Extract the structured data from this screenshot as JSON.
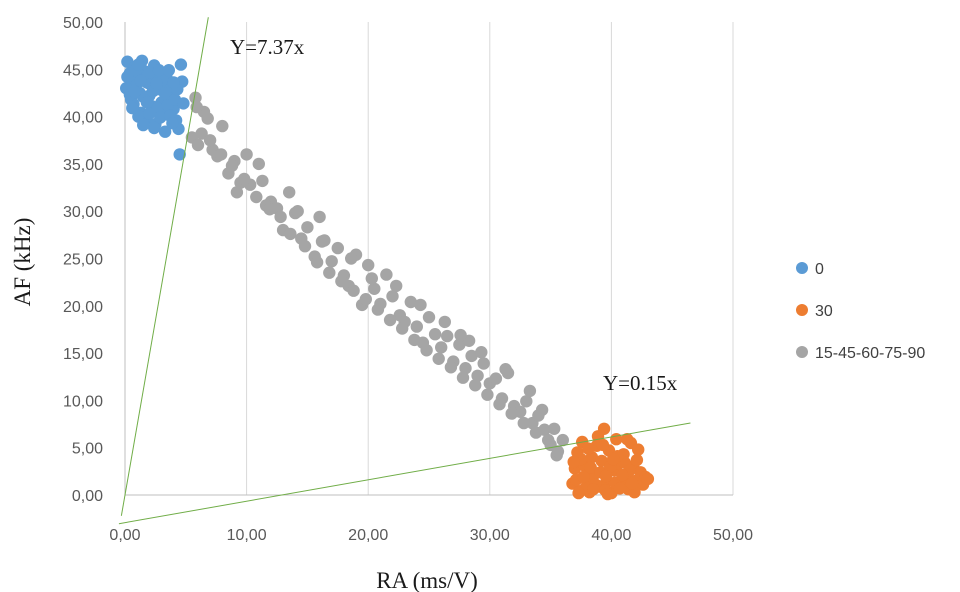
{
  "chart_data": {
    "type": "scatter",
    "xlabel": "RA (ms/V)",
    "ylabel": "AF (kHz)",
    "xlim": [
      0,
      50
    ],
    "ylim": [
      0,
      50
    ],
    "x_ticks": [
      "0,00",
      "10,00",
      "20,00",
      "30,00",
      "40,00",
      "50,00"
    ],
    "y_ticks": [
      "0,00",
      "5,00",
      "10,00",
      "15,00",
      "20,00",
      "25,00",
      "30,00",
      "35,00",
      "40,00",
      "45,00",
      "50,00"
    ],
    "grid": "vertical",
    "legend_position": "right",
    "series": [
      {
        "name": "0",
        "color": "#5B9BD5",
        "points": [
          [
            0.2,
            45.8
          ],
          [
            0.4,
            44.6
          ],
          [
            0.6,
            43.9
          ],
          [
            0.3,
            42.8
          ],
          [
            0.8,
            45.2
          ],
          [
            1.0,
            44.1
          ],
          [
            1.2,
            42.5
          ],
          [
            0.5,
            41.8
          ],
          [
            0.9,
            43.3
          ],
          [
            1.4,
            45.9
          ],
          [
            1.6,
            44.8
          ],
          [
            1.8,
            43.6
          ],
          [
            2.0,
            42.2
          ],
          [
            2.2,
            41.1
          ],
          [
            1.3,
            40.4
          ],
          [
            1.7,
            39.7
          ],
          [
            2.4,
            45.4
          ],
          [
            2.6,
            44.0
          ],
          [
            2.8,
            42.9
          ],
          [
            3.0,
            41.5
          ],
          [
            3.2,
            40.6
          ],
          [
            2.5,
            39.2
          ],
          [
            3.4,
            44.3
          ],
          [
            3.6,
            43.1
          ],
          [
            3.8,
            42.0
          ],
          [
            4.0,
            40.8
          ],
          [
            4.2,
            39.6
          ],
          [
            4.4,
            38.7
          ],
          [
            4.6,
            45.5
          ],
          [
            4.7,
            43.7
          ],
          [
            4.5,
            36.0
          ],
          [
            0.1,
            43.0
          ],
          [
            0.7,
            41.3
          ],
          [
            1.1,
            40.0
          ],
          [
            1.5,
            42.1
          ],
          [
            1.9,
            44.4
          ],
          [
            2.1,
            43.4
          ],
          [
            2.3,
            42.7
          ],
          [
            2.7,
            40.9
          ],
          [
            2.9,
            39.9
          ],
          [
            3.1,
            43.9
          ],
          [
            3.3,
            42.4
          ],
          [
            3.5,
            41.2
          ],
          [
            3.7,
            40.1
          ],
          [
            3.9,
            39.3
          ],
          [
            4.1,
            41.8
          ],
          [
            4.3,
            42.9
          ],
          [
            0.4,
            42.3
          ],
          [
            0.9,
            44.9
          ],
          [
            1.3,
            43.8
          ],
          [
            1.8,
            41.5
          ],
          [
            2.4,
            38.8
          ],
          [
            2.8,
            44.9
          ],
          [
            3.3,
            38.4
          ],
          [
            0.6,
            40.9
          ],
          [
            4.8,
            41.4
          ],
          [
            1.1,
            45.5
          ],
          [
            0.2,
            44.2
          ],
          [
            1.5,
            39.1
          ],
          [
            2.0,
            40.3
          ],
          [
            3.6,
            44.9
          ],
          [
            4.0,
            43.6
          ],
          [
            0.8,
            42.6
          ],
          [
            2.6,
            43.5
          ]
        ]
      },
      {
        "name": "30",
        "color": "#ED7D31",
        "points": [
          [
            36.8,
            1.2
          ],
          [
            37.0,
            2.8
          ],
          [
            37.2,
            4.5
          ],
          [
            37.4,
            0.4
          ],
          [
            37.6,
            5.6
          ],
          [
            37.8,
            3.1
          ],
          [
            38.0,
            1.7
          ],
          [
            38.2,
            0.3
          ],
          [
            38.4,
            4.0
          ],
          [
            38.6,
            2.2
          ],
          [
            38.8,
            5.2
          ],
          [
            39.0,
            0.9
          ],
          [
            39.2,
            3.6
          ],
          [
            39.4,
            7.0
          ],
          [
            39.6,
            1.4
          ],
          [
            39.8,
            4.7
          ],
          [
            40.0,
            0.2
          ],
          [
            40.2,
            2.6
          ],
          [
            40.4,
            5.9
          ],
          [
            40.6,
            3.3
          ],
          [
            40.8,
            1.0
          ],
          [
            41.0,
            4.3
          ],
          [
            41.2,
            2.0
          ],
          [
            41.4,
            0.6
          ],
          [
            41.6,
            5.5
          ],
          [
            41.8,
            3.0
          ],
          [
            42.0,
            1.5
          ],
          [
            42.2,
            4.8
          ],
          [
            42.4,
            2.4
          ],
          [
            42.6,
            1.1
          ],
          [
            42.8,
            1.9
          ],
          [
            43.0,
            1.7
          ],
          [
            37.1,
            1.6
          ],
          [
            37.5,
            3.8
          ],
          [
            37.9,
            0.8
          ],
          [
            38.3,
            2.9
          ],
          [
            38.7,
            1.1
          ],
          [
            39.1,
            2.4
          ],
          [
            39.5,
            0.5
          ],
          [
            39.9,
            3.0
          ],
          [
            40.3,
            1.3
          ],
          [
            40.7,
            0.7
          ],
          [
            41.1,
            3.4
          ],
          [
            41.5,
            2.6
          ],
          [
            41.9,
            0.3
          ],
          [
            38.1,
            4.9
          ],
          [
            39.3,
            5.3
          ],
          [
            40.5,
            4.1
          ],
          [
            41.3,
            5.9
          ],
          [
            38.9,
            6.2
          ],
          [
            39.7,
            0.1
          ],
          [
            37.3,
            0.2
          ],
          [
            40.9,
            2.1
          ],
          [
            42.1,
            3.7
          ],
          [
            36.9,
            3.5
          ],
          [
            38.5,
            0.6
          ],
          [
            39.55,
            2.0
          ],
          [
            40.15,
            3.8
          ],
          [
            37.7,
            1.9
          ],
          [
            41.7,
            1.2
          ]
        ]
      },
      {
        "name": "15-45-60-75-90",
        "color": "#A5A5A5",
        "points": [
          [
            5.8,
            42.0
          ],
          [
            6.5,
            40.5
          ],
          [
            5.5,
            37.8
          ],
          [
            6.0,
            37.0
          ],
          [
            6.8,
            39.8
          ],
          [
            7.2,
            36.5
          ],
          [
            8.0,
            39.0
          ],
          [
            7.6,
            35.8
          ],
          [
            8.5,
            34.0
          ],
          [
            9.0,
            35.3
          ],
          [
            9.5,
            33.0
          ],
          [
            10.0,
            36.0
          ],
          [
            10.3,
            32.8
          ],
          [
            11.0,
            35.0
          ],
          [
            11.3,
            33.2
          ],
          [
            12.0,
            31.0
          ],
          [
            12.5,
            30.3
          ],
          [
            13.0,
            28.0
          ],
          [
            13.5,
            32.0
          ],
          [
            14.0,
            29.8
          ],
          [
            14.5,
            27.1
          ],
          [
            15.0,
            28.3
          ],
          [
            15.6,
            25.2
          ],
          [
            16.0,
            29.4
          ],
          [
            16.4,
            26.9
          ],
          [
            17.0,
            24.7
          ],
          [
            17.5,
            26.1
          ],
          [
            18.0,
            23.2
          ],
          [
            18.4,
            22.1
          ],
          [
            19.0,
            25.4
          ],
          [
            19.5,
            20.1
          ],
          [
            20.0,
            24.3
          ],
          [
            20.5,
            21.8
          ],
          [
            21.0,
            20.2
          ],
          [
            21.5,
            23.3
          ],
          [
            22.0,
            21.0
          ],
          [
            22.6,
            19.0
          ],
          [
            23.0,
            18.3
          ],
          [
            23.5,
            20.4
          ],
          [
            24.0,
            17.8
          ],
          [
            24.5,
            16.1
          ],
          [
            25.0,
            18.8
          ],
          [
            25.5,
            17.0
          ],
          [
            26.0,
            15.6
          ],
          [
            26.5,
            16.8
          ],
          [
            27.0,
            14.1
          ],
          [
            27.5,
            15.9
          ],
          [
            28.0,
            13.4
          ],
          [
            28.5,
            14.7
          ],
          [
            29.0,
            12.6
          ],
          [
            29.5,
            13.9
          ],
          [
            30.0,
            11.8
          ],
          [
            30.5,
            12.3
          ],
          [
            31.0,
            10.2
          ],
          [
            31.5,
            12.9
          ],
          [
            32.0,
            9.4
          ],
          [
            32.5,
            8.8
          ],
          [
            33.0,
            9.9
          ],
          [
            33.5,
            7.6
          ],
          [
            34.0,
            8.4
          ],
          [
            34.5,
            6.9
          ],
          [
            35.0,
            5.3
          ],
          [
            35.5,
            4.2
          ],
          [
            36.0,
            5.8
          ],
          [
            5.9,
            41.0
          ],
          [
            6.3,
            38.2
          ],
          [
            7.0,
            37.5
          ],
          [
            7.9,
            36.0
          ],
          [
            8.8,
            34.8
          ],
          [
            9.8,
            33.4
          ],
          [
            10.8,
            31.5
          ],
          [
            11.6,
            30.6
          ],
          [
            12.8,
            29.4
          ],
          [
            13.6,
            27.6
          ],
          [
            14.8,
            26.3
          ],
          [
            15.8,
            24.6
          ],
          [
            16.8,
            23.5
          ],
          [
            17.8,
            22.6
          ],
          [
            18.8,
            21.6
          ],
          [
            19.8,
            20.7
          ],
          [
            20.8,
            19.6
          ],
          [
            21.8,
            18.5
          ],
          [
            22.8,
            17.6
          ],
          [
            23.8,
            16.4
          ],
          [
            24.8,
            15.3
          ],
          [
            25.8,
            14.4
          ],
          [
            26.8,
            13.5
          ],
          [
            27.8,
            12.4
          ],
          [
            28.8,
            11.6
          ],
          [
            29.8,
            10.6
          ],
          [
            30.8,
            9.6
          ],
          [
            31.8,
            8.6
          ],
          [
            32.8,
            7.6
          ],
          [
            33.8,
            6.6
          ],
          [
            34.8,
            5.8
          ],
          [
            35.6,
            4.6
          ],
          [
            9.2,
            32.0
          ],
          [
            11.9,
            30.2
          ],
          [
            14.2,
            30.0
          ],
          [
            16.2,
            26.8
          ],
          [
            18.6,
            25.0
          ],
          [
            20.3,
            22.9
          ],
          [
            22.3,
            22.1
          ],
          [
            24.3,
            20.1
          ],
          [
            26.3,
            18.3
          ],
          [
            28.3,
            16.3
          ],
          [
            29.3,
            15.1
          ],
          [
            31.3,
            13.3
          ],
          [
            33.3,
            11.0
          ],
          [
            34.3,
            9.0
          ],
          [
            35.3,
            7.0
          ],
          [
            27.6,
            16.9
          ]
        ]
      }
    ],
    "lines": [
      {
        "label": "Y=7.37x",
        "slope": 7.37
      },
      {
        "label": "Y=0.15x",
        "slope": 0.15
      }
    ]
  }
}
